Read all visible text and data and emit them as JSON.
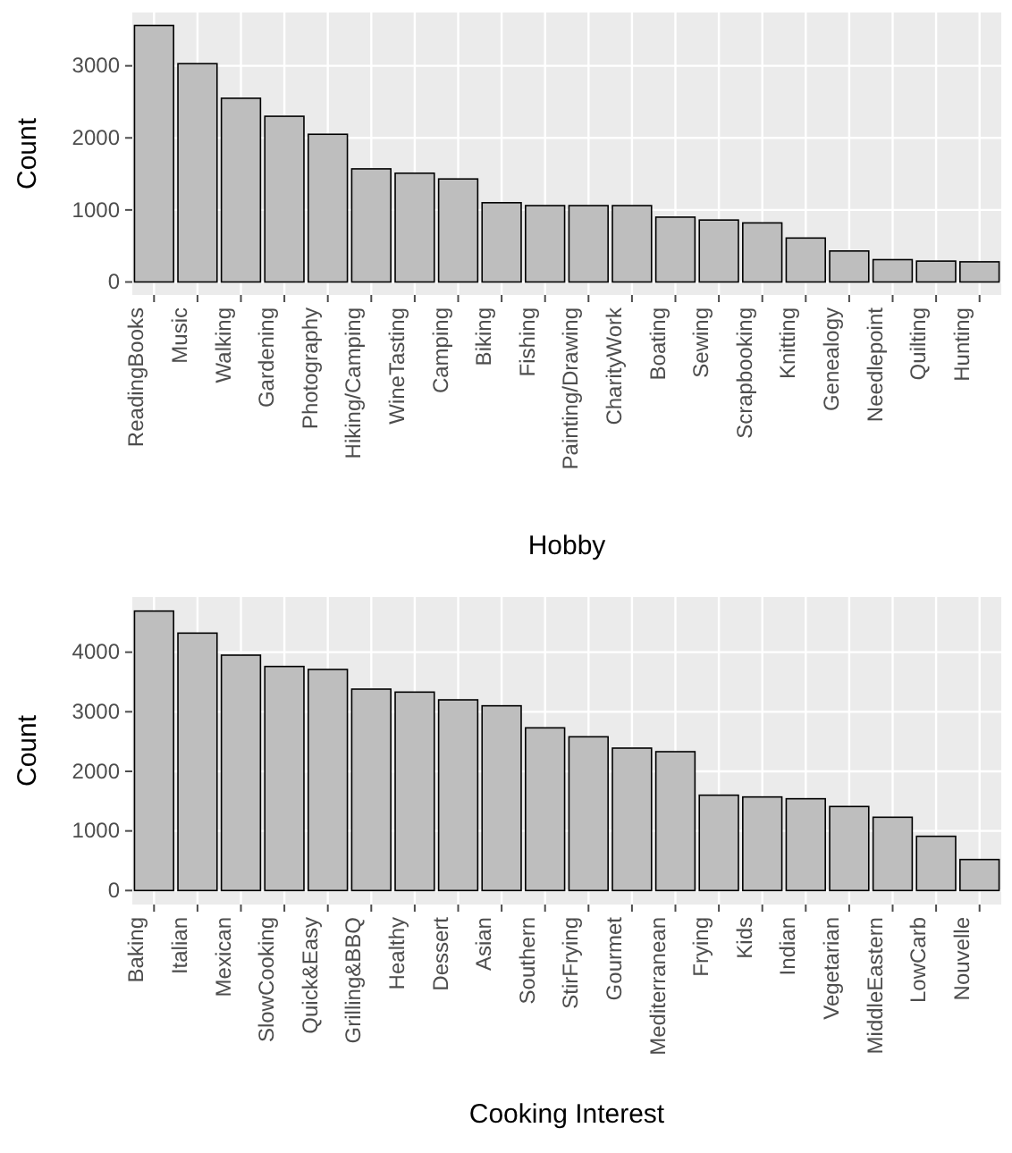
{
  "chart_data": [
    {
      "type": "bar",
      "xlabel": "Hobby",
      "ylabel": "Count",
      "categories": [
        "ReadingBooks",
        "Music",
        "Walking",
        "Gardening",
        "Photography",
        "Hiking/Camping",
        "WineTasting",
        "Camping",
        "Biking",
        "Fishing",
        "Painting/Drawing",
        "CharityWork",
        "Boating",
        "Sewing",
        "Scrapbooking",
        "Knitting",
        "Genealogy",
        "Needlepoint",
        "Quilting",
        "Hunting"
      ],
      "values": [
        3560,
        3030,
        2550,
        2300,
        2050,
        1570,
        1510,
        1430,
        1100,
        1060,
        1060,
        1060,
        900,
        860,
        820,
        610,
        430,
        310,
        290,
        280
      ],
      "color": "#bebebe",
      "ylim": [
        -180,
        3740
      ],
      "yticks": [
        0,
        1000,
        2000,
        3000
      ],
      "grid": true
    },
    {
      "type": "bar",
      "xlabel": "Cooking Interest",
      "ylabel": "Count",
      "categories": [
        "Baking",
        "Italian",
        "Mexican",
        "SlowCooking",
        "Quick&Easy",
        "Grilling&BBQ",
        "Healthy",
        "Dessert",
        "Asian",
        "Southern",
        "StirFrying",
        "Gourmet",
        "Mediterranean",
        "Frying",
        "Kids",
        "Indian",
        "Vegetarian",
        "MiddleEastern",
        "LowCarb",
        "Nouvelle"
      ],
      "values": [
        4690,
        4320,
        3950,
        3760,
        3710,
        3380,
        3330,
        3200,
        3100,
        2730,
        2580,
        2390,
        2330,
        1600,
        1570,
        1540,
        1410,
        1230,
        910,
        520
      ],
      "color": "#bebebe",
      "ylim": [
        -235,
        4925
      ],
      "yticks": [
        0,
        1000,
        2000,
        3000,
        4000
      ],
      "grid": true
    }
  ]
}
